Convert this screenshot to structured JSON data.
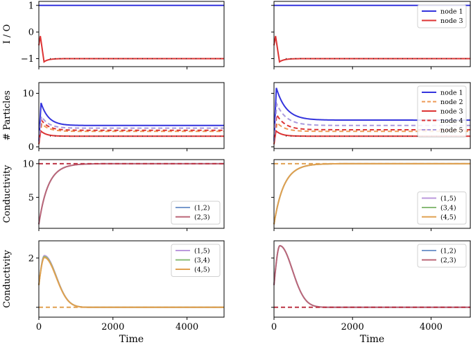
{
  "chart_data": [
    {
      "type": "line",
      "ylabel": "I / O",
      "xlabel": "",
      "xlim": [
        0,
        5000
      ],
      "ylim": [
        -1.3,
        1.15
      ],
      "yticks": [
        -1,
        0,
        1
      ],
      "ytick_labels": [
        "−1",
        "0",
        "1"
      ],
      "xticks": [
        0,
        2000,
        4000
      ],
      "show_xtick_labels": false,
      "legend": null,
      "series": [
        {
          "name": "node 1",
          "color": "#3333dd",
          "style": "solid",
          "kind": "const",
          "v": 1.0
        },
        {
          "name": "node 3",
          "color": "#dd3333",
          "style": "solid",
          "kind": "spike",
          "v0": -0.5,
          "peak": -0.15,
          "tp": 40,
          "dip": -1.12,
          "td": 140,
          "tau": 120,
          "vf": -1.0,
          "dotted": true
        }
      ]
    },
    {
      "type": "line",
      "ylabel": "I / O",
      "xlabel": "",
      "xlim": [
        0,
        5000
      ],
      "ylim": [
        -1.3,
        1.15
      ],
      "yticks": [
        -1,
        0,
        1
      ],
      "ytick_labels": [
        "",
        "",
        ""
      ],
      "xticks": [
        0,
        2000,
        4000
      ],
      "show_xtick_labels": false,
      "legend": {
        "position": "top-right",
        "entries": [
          "node 1",
          "node 3"
        ]
      },
      "series": [
        {
          "name": "node 1",
          "color": "#3333dd",
          "style": "solid",
          "kind": "const",
          "v": 1.0
        },
        {
          "name": "node 3",
          "color": "#dd3333",
          "style": "solid",
          "kind": "spike",
          "v0": -0.5,
          "peak": -0.15,
          "tp": 40,
          "dip": -1.12,
          "td": 140,
          "tau": 120,
          "vf": -1.0,
          "dotted": true
        }
      ]
    },
    {
      "type": "line",
      "ylabel": "# Particles",
      "xlabel": "",
      "xlim": [
        0,
        5000
      ],
      "ylim": [
        -0.3,
        12
      ],
      "yticks": [
        0,
        10
      ],
      "ytick_labels": [
        "0",
        "10"
      ],
      "xticks": [
        0,
        2000,
        4000
      ],
      "show_xtick_labels": false,
      "legend": null,
      "series": [
        {
          "name": "node 1",
          "color": "#3333dd",
          "style": "solid",
          "kind": "spike",
          "v0": 1,
          "peak": 8.2,
          "tp": 60,
          "tau": 200,
          "vf": 4.0
        },
        {
          "name": "node 2",
          "color": "#ee9955",
          "style": "dashed",
          "kind": "spike",
          "v0": 1,
          "peak": 4.3,
          "tp": 80,
          "tau": 200,
          "vf": 2.9
        },
        {
          "name": "node 3",
          "color": "#dd3333",
          "style": "solid",
          "kind": "spike",
          "v0": 0.5,
          "peak": 3.0,
          "tp": 50,
          "tau": 150,
          "vf": 2.0,
          "dotted": true
        },
        {
          "name": "node 4",
          "color": "#dd3333",
          "style": "dashed",
          "kind": "spike",
          "v0": 1,
          "peak": 5.0,
          "tp": 70,
          "tau": 200,
          "vf": 3.1
        },
        {
          "name": "node 5",
          "color": "#aa99dd",
          "style": "dashed",
          "kind": "spike",
          "v0": 1,
          "peak": 5.7,
          "tp": 70,
          "tau": 200,
          "vf": 3.5
        }
      ]
    },
    {
      "type": "line",
      "ylabel": "# Particles",
      "xlabel": "",
      "xlim": [
        0,
        5000
      ],
      "ylim": [
        -0.3,
        12
      ],
      "yticks": [
        0,
        10
      ],
      "ytick_labels": [
        "",
        ""
      ],
      "xticks": [
        0,
        2000,
        4000
      ],
      "show_xtick_labels": false,
      "legend": {
        "position": "top-right",
        "entries": [
          "node 1",
          "node 2",
          "node 3",
          "node 4",
          "node 5"
        ]
      },
      "series": [
        {
          "name": "node 1",
          "color": "#3333dd",
          "style": "solid",
          "kind": "spike",
          "v0": 1,
          "peak": 11.0,
          "tp": 60,
          "tau": 250,
          "vf": 5.0
        },
        {
          "name": "node 2",
          "color": "#ee9955",
          "style": "dashed",
          "kind": "spike",
          "v0": 1,
          "peak": 4.5,
          "tp": 80,
          "tau": 200,
          "vf": 2.9
        },
        {
          "name": "node 3",
          "color": "#dd3333",
          "style": "solid",
          "kind": "spike",
          "v0": 0.5,
          "peak": 3.0,
          "tp": 50,
          "tau": 150,
          "vf": 2.0,
          "dotted": true
        },
        {
          "name": "node 4",
          "color": "#dd3333",
          "style": "dashed",
          "kind": "spike",
          "v0": 1,
          "peak": 6.0,
          "tp": 70,
          "tau": 220,
          "vf": 3.2
        },
        {
          "name": "node 5",
          "color": "#aa99dd",
          "style": "dashed",
          "kind": "spike",
          "v0": 1,
          "peak": 8.0,
          "tp": 70,
          "tau": 250,
          "vf": 4.0
        }
      ]
    },
    {
      "type": "line",
      "ylabel": "Conductivity",
      "xlabel": "",
      "xlim": [
        0,
        5000
      ],
      "ylim": [
        0.4,
        10.6
      ],
      "yticks": [
        5,
        10
      ],
      "ytick_labels": [
        "5",
        "10"
      ],
      "xticks": [
        0,
        2000,
        4000
      ],
      "show_xtick_labels": false,
      "legend": {
        "position": "bottom-right",
        "entries": [
          "(1,2)",
          "(2,3)"
        ]
      },
      "series": [
        {
          "name": "(1,2)",
          "color": "#7799cc",
          "style": "solid",
          "kind": "rise",
          "v0": 1.0,
          "vf": 10.0,
          "tau": 250
        },
        {
          "name": "(2,3)",
          "color": "#bb6677",
          "style": "solid",
          "kind": "rise",
          "v0": 1.0,
          "vf": 10.0,
          "tau": 250
        },
        {
          "name": "",
          "color": "#bb3344",
          "style": "dashed",
          "kind": "const",
          "v": 10.0
        }
      ]
    },
    {
      "type": "line",
      "ylabel": "Conductivity",
      "xlabel": "",
      "xlim": [
        0,
        5000
      ],
      "ylim": [
        0.4,
        10.6
      ],
      "yticks": [
        5,
        10
      ],
      "ytick_labels": [
        "",
        ""
      ],
      "xticks": [
        0,
        2000,
        4000
      ],
      "show_xtick_labels": false,
      "legend": {
        "position": "bottom-right",
        "entries": [
          "(1,5)",
          "(3,4)",
          "(4,5)"
        ]
      },
      "series": [
        {
          "name": "(1,5)",
          "color": "#bb99dd",
          "style": "solid",
          "kind": "rise",
          "v0": 1.0,
          "vf": 10.0,
          "tau": 250
        },
        {
          "name": "(3,4)",
          "color": "#88bb77",
          "style": "solid",
          "kind": "rise",
          "v0": 1.0,
          "vf": 10.0,
          "tau": 250
        },
        {
          "name": "(4,5)",
          "color": "#e0a050",
          "style": "solid",
          "kind": "rise",
          "v0": 1.0,
          "vf": 10.0,
          "tau": 250
        },
        {
          "name": "",
          "color": "#e0a050",
          "style": "dashed",
          "kind": "const",
          "v": 10.0
        }
      ]
    },
    {
      "type": "line",
      "ylabel": "Conductivity",
      "xlabel": "Time",
      "xlim": [
        0,
        5000
      ],
      "ylim": [
        -0.4,
        2.7
      ],
      "yticks": [
        0,
        2
      ],
      "ytick_labels": [
        "",
        "2"
      ],
      "xticks": [
        0,
        2000,
        4000
      ],
      "show_xtick_labels": true,
      "xtick_labels": [
        "0",
        "2000",
        "4000"
      ],
      "legend": {
        "position": "top-right",
        "entries": [
          "(1,5)",
          "(3,4)",
          "(4,5)"
        ]
      },
      "series": [
        {
          "name": "(1,5)",
          "color": "#bb99dd",
          "style": "solid",
          "kind": "bump",
          "v0": 0.9,
          "peak": 2.1,
          "tp": 150,
          "tau": 450
        },
        {
          "name": "(3,4)",
          "color": "#88bb77",
          "style": "solid",
          "kind": "bump",
          "v0": 0.9,
          "peak": 2.06,
          "tp": 150,
          "tau": 450
        },
        {
          "name": "(4,5)",
          "color": "#e0a050",
          "style": "solid",
          "kind": "bump",
          "v0": 0.9,
          "peak": 2.02,
          "tp": 150,
          "tau": 450
        },
        {
          "name": "",
          "color": "#e0a050",
          "style": "dashed",
          "kind": "const",
          "v": 0.0
        }
      ]
    },
    {
      "type": "line",
      "ylabel": "",
      "xlabel": "Time",
      "xlim": [
        0,
        5000
      ],
      "ylim": [
        -0.4,
        2.7
      ],
      "yticks": [
        0,
        2
      ],
      "ytick_labels": [
        "",
        ""
      ],
      "xticks": [
        0,
        2000,
        4000
      ],
      "show_xtick_labels": true,
      "xtick_labels": [
        "0",
        "2000",
        "4000"
      ],
      "legend": {
        "position": "top-right",
        "entries": [
          "(1,2)",
          "(2,3)"
        ]
      },
      "series": [
        {
          "name": "(1,2)",
          "color": "#7799cc",
          "style": "solid",
          "kind": "bump",
          "v0": 0.9,
          "peak": 2.5,
          "tp": 150,
          "tau": 450
        },
        {
          "name": "(2,3)",
          "color": "#bb6677",
          "style": "solid",
          "kind": "bump",
          "v0": 0.9,
          "peak": 2.5,
          "tp": 150,
          "tau": 450
        },
        {
          "name": "",
          "color": "#bb3344",
          "style": "dashed",
          "kind": "const",
          "v": 0.0
        }
      ]
    }
  ]
}
